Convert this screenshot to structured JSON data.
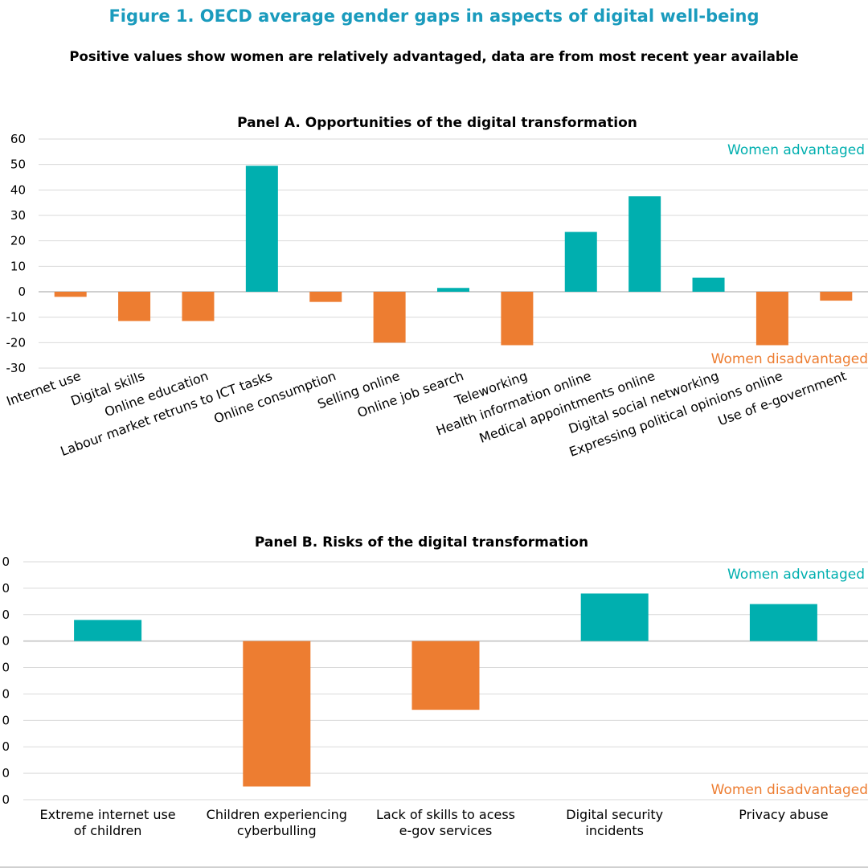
{
  "figure": {
    "title": "Figure 1. OECD average gender gaps in aspects of digital well-being",
    "subtitle": "Positive values show women are relatively advantaged, data are from most recent year available"
  },
  "colors": {
    "positive": "#00AFAF",
    "negative": "#ED7D31",
    "title": "#1A9BBD",
    "gridline": "#D9D9D9",
    "zeroline": "#BFBFBF"
  },
  "chart_data": [
    {
      "type": "bar",
      "title": "Panel A. Opportunities of the digital transformation",
      "annotations": {
        "top": "Women advantaged",
        "bottom": "Women disadvantaged"
      },
      "categories": [
        "Internet use",
        "Digital skills",
        "Online education",
        "Labour market retruns to ICT tasks",
        "Online consumption",
        "Selling online",
        "Online job search",
        "Teleworking",
        "Health information online",
        "Medical appointments online",
        "Digital social networking",
        "Expressing political opinions online",
        "Use of e-government"
      ],
      "values": [
        -2,
        -11.5,
        -11.5,
        49.5,
        -4,
        -20,
        1.5,
        -21,
        23.5,
        37.5,
        5.5,
        -21,
        -3.5
      ],
      "ylim": [
        -30,
        60
      ],
      "yticks": [
        60,
        50,
        40,
        30,
        20,
        10,
        0,
        -10,
        -20,
        -30
      ],
      "grid": true
    },
    {
      "type": "bar",
      "title": "Panel B. Risks of the digital transformation",
      "annotations": {
        "top": "Women advantaged",
        "bottom": "Women disadvantaged"
      },
      "categories": [
        [
          "Extreme internet use",
          "of children"
        ],
        [
          "Children experiencing",
          "cyberbulling"
        ],
        [
          "Lack of skills to acess",
          "e-gov services"
        ],
        [
          "Digital security",
          "incidents"
        ],
        [
          "Privacy abuse"
        ]
      ],
      "values": [
        8,
        -55,
        -26,
        18,
        14
      ],
      "ylim": [
        -60,
        30
      ],
      "yticks": [
        "0",
        "0",
        "0",
        "0",
        "0",
        "0",
        "0",
        "0",
        "0",
        "0"
      ],
      "grid": true
    }
  ]
}
